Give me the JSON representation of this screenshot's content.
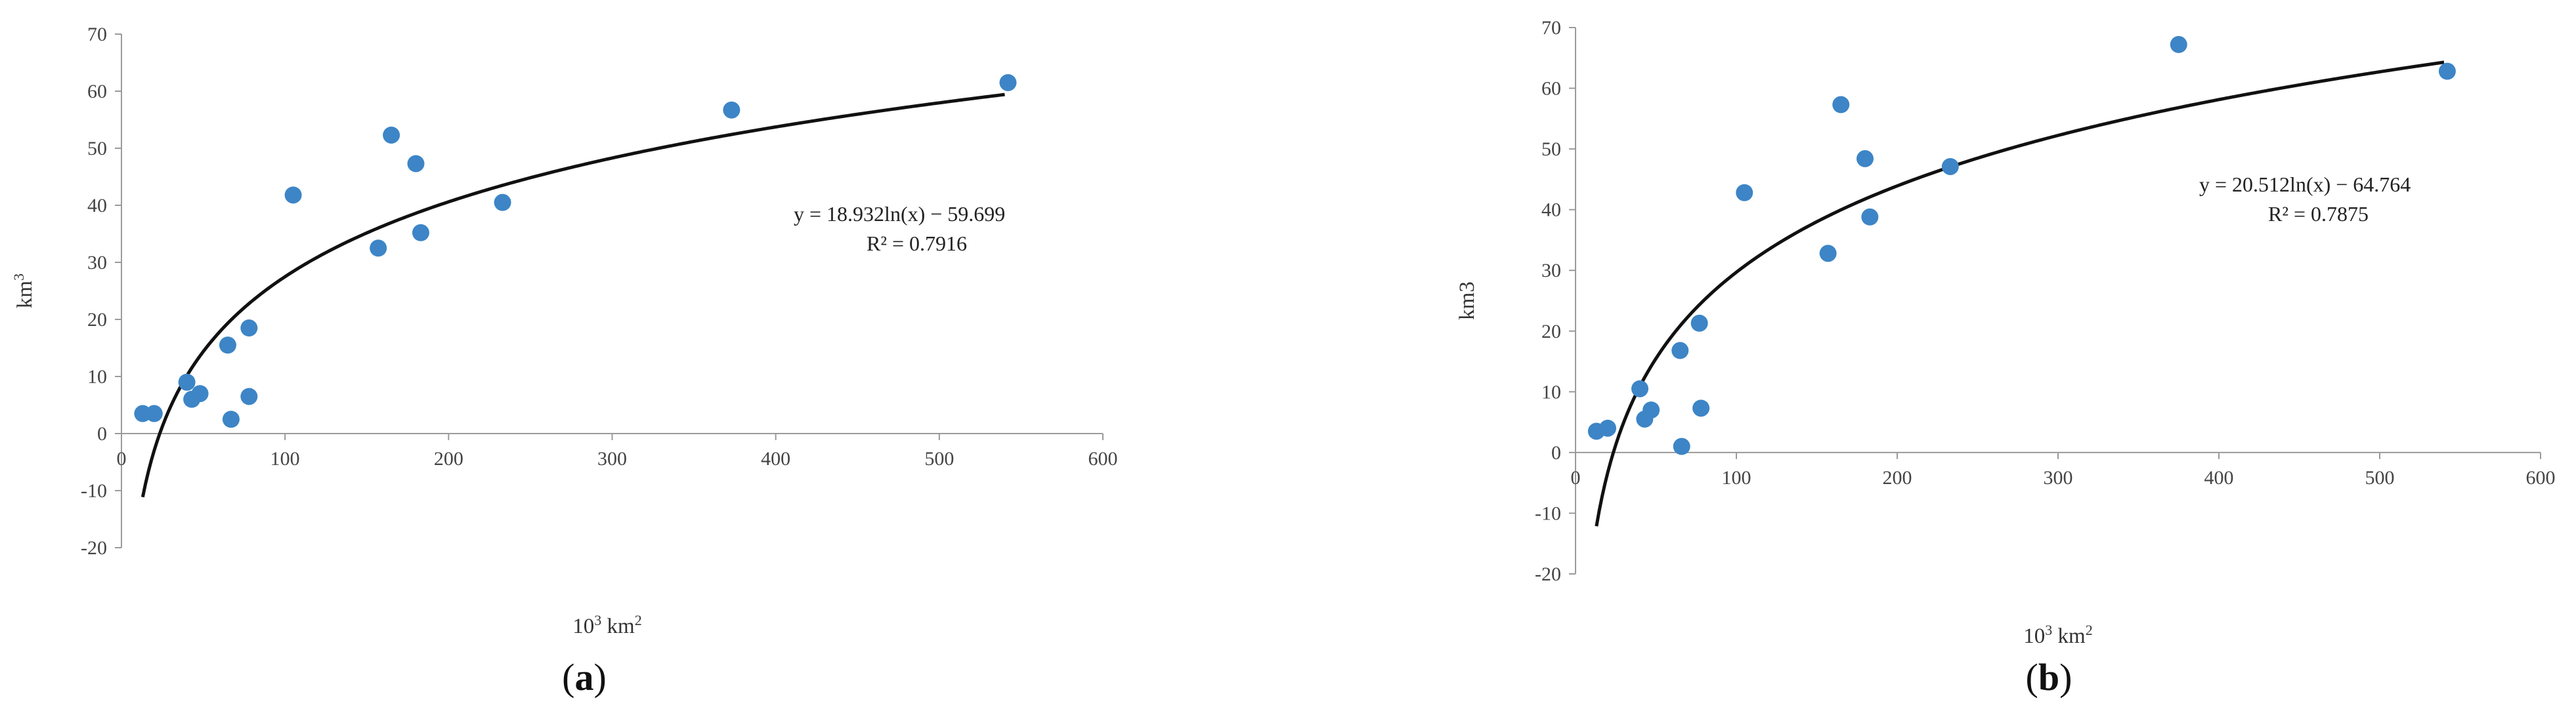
{
  "chart_data": [
    {
      "type": "scatter",
      "panel_label": "a",
      "xlabel_base": "10",
      "xlabel_sup": "3",
      "xlabel_unit": " km",
      "xlabel_unit_sup": "2",
      "ylabel_base": "km",
      "ylabel_sup": "3",
      "xlim": [
        0,
        600
      ],
      "ylim": [
        -20,
        70
      ],
      "x_ticks": [
        0,
        100,
        200,
        300,
        400,
        500,
        600
      ],
      "y_ticks": [
        -20,
        -10,
        0,
        10,
        20,
        30,
        40,
        50,
        60,
        70
      ],
      "grid": false,
      "points": [
        {
          "x": 13,
          "y": 3.5
        },
        {
          "x": 20,
          "y": 3.5
        },
        {
          "x": 40,
          "y": 9
        },
        {
          "x": 43,
          "y": 6
        },
        {
          "x": 48,
          "y": 7
        },
        {
          "x": 65,
          "y": 15.5
        },
        {
          "x": 67,
          "y": 2.5
        },
        {
          "x": 78,
          "y": 18.5
        },
        {
          "x": 78,
          "y": 6.5
        },
        {
          "x": 105,
          "y": 41.8
        },
        {
          "x": 157,
          "y": 32.5
        },
        {
          "x": 165,
          "y": 52.3
        },
        {
          "x": 180,
          "y": 47.3
        },
        {
          "x": 183,
          "y": 35.2
        },
        {
          "x": 233,
          "y": 40.5
        },
        {
          "x": 373,
          "y": 56.7
        },
        {
          "x": 542,
          "y": 61.5
        }
      ],
      "trendline": {
        "type": "logarithmic",
        "a": 18.932,
        "b": -59.699,
        "x_range": [
          13,
          540
        ]
      },
      "equation_label": "y = 18.932ln(x) − 59.699",
      "r2_label": "R² = 0.7916",
      "colors": {
        "points": "#3d85c6",
        "trendline": "#111111"
      }
    },
    {
      "type": "scatter",
      "panel_label": "b",
      "xlabel_base": "10",
      "xlabel_sup": "3",
      "xlabel_unit": " km",
      "xlabel_unit_sup": "2",
      "ylabel_base": "km3",
      "ylabel_sup": "",
      "xlim": [
        0,
        600
      ],
      "ylim": [
        -20,
        70
      ],
      "x_ticks": [
        0,
        100,
        200,
        300,
        400,
        500,
        600
      ],
      "y_ticks": [
        -20,
        -10,
        0,
        10,
        20,
        30,
        40,
        50,
        60,
        70
      ],
      "grid": false,
      "points": [
        {
          "x": 13,
          "y": 3.5
        },
        {
          "x": 20,
          "y": 4
        },
        {
          "x": 40,
          "y": 10.5
        },
        {
          "x": 43,
          "y": 5.5
        },
        {
          "x": 47,
          "y": 7
        },
        {
          "x": 65,
          "y": 16.8
        },
        {
          "x": 66,
          "y": 1
        },
        {
          "x": 77,
          "y": 21.3
        },
        {
          "x": 78,
          "y": 7.3
        },
        {
          "x": 105,
          "y": 42.8
        },
        {
          "x": 157,
          "y": 32.8
        },
        {
          "x": 165,
          "y": 57.3
        },
        {
          "x": 180,
          "y": 48.4
        },
        {
          "x": 183,
          "y": 38.8
        },
        {
          "x": 233,
          "y": 47.1
        },
        {
          "x": 375,
          "y": 67.2
        },
        {
          "x": 542,
          "y": 62.8
        }
      ],
      "trendline": {
        "type": "logarithmic",
        "a": 20.512,
        "b": -64.764,
        "x_range": [
          13,
          540
        ]
      },
      "equation_label": "y = 20.512ln(x) − 64.764",
      "r2_label": "R² = 0.7875",
      "colors": {
        "points": "#3d85c6",
        "trendline": "#111111"
      }
    }
  ]
}
